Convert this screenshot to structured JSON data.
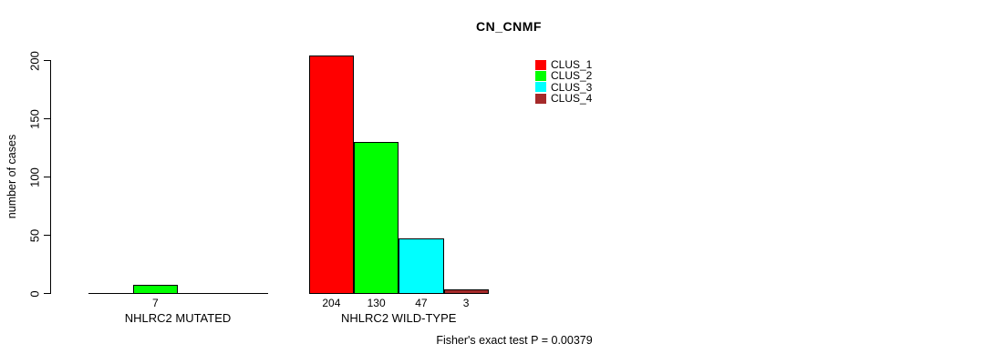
{
  "chart_data": {
    "type": "bar",
    "title": "CN_CNMF",
    "ylabel": "number of cases",
    "xlabel": "",
    "ylim": [
      0,
      200
    ],
    "yticks": [
      0,
      50,
      100,
      150,
      200
    ],
    "grid": false,
    "legend_position": "top-right",
    "groups": [
      "NHLRC2 MUTATED",
      "NHLRC2 WILD-TYPE"
    ],
    "series": [
      {
        "name": "CLUS_1",
        "color": "#ff0000",
        "values": [
          0,
          204
        ]
      },
      {
        "name": "CLUS_2",
        "color": "#00ff00",
        "values": [
          7,
          130
        ]
      },
      {
        "name": "CLUS_3",
        "color": "#00ffff",
        "values": [
          0,
          47
        ]
      },
      {
        "name": "CLUS_4",
        "color": "#a52a2a",
        "values": [
          0,
          3
        ]
      }
    ],
    "bar_value_labels": {
      "shown_when": "value > 0",
      "mutated": [
        "7"
      ],
      "wild_type": [
        "204",
        "130",
        "47",
        "3"
      ]
    },
    "annotation": "Fisher's exact test P = 0.00379",
    "colors": {
      "background": "#ffffff",
      "axis": "#000000",
      "text": "#000000"
    }
  }
}
